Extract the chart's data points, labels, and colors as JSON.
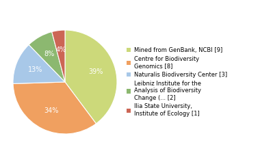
{
  "slices": [
    39,
    34,
    13,
    8,
    4
  ],
  "colors": [
    "#ccd97a",
    "#f0a060",
    "#a8c8e8",
    "#8cb870",
    "#cc6655"
  ],
  "labels": [
    "39%",
    "34%",
    "13%",
    "8%",
    "4%"
  ],
  "legend_labels": [
    "Mined from GenBank, NCBI [9]",
    "Centre for Biodiversity\nGenomics [8]",
    "Naturalis Biodiversity Center [3]",
    "Leibniz Institute for the\nAnalysis of Biodiversity\nChange (... [2]",
    "Ilia State University,\nInstitute of Ecology [1]"
  ],
  "startangle": 90,
  "label_color": "white",
  "label_fontsize": 7,
  "background_color": "#ffffff",
  "legend_fontsize": 6.0
}
